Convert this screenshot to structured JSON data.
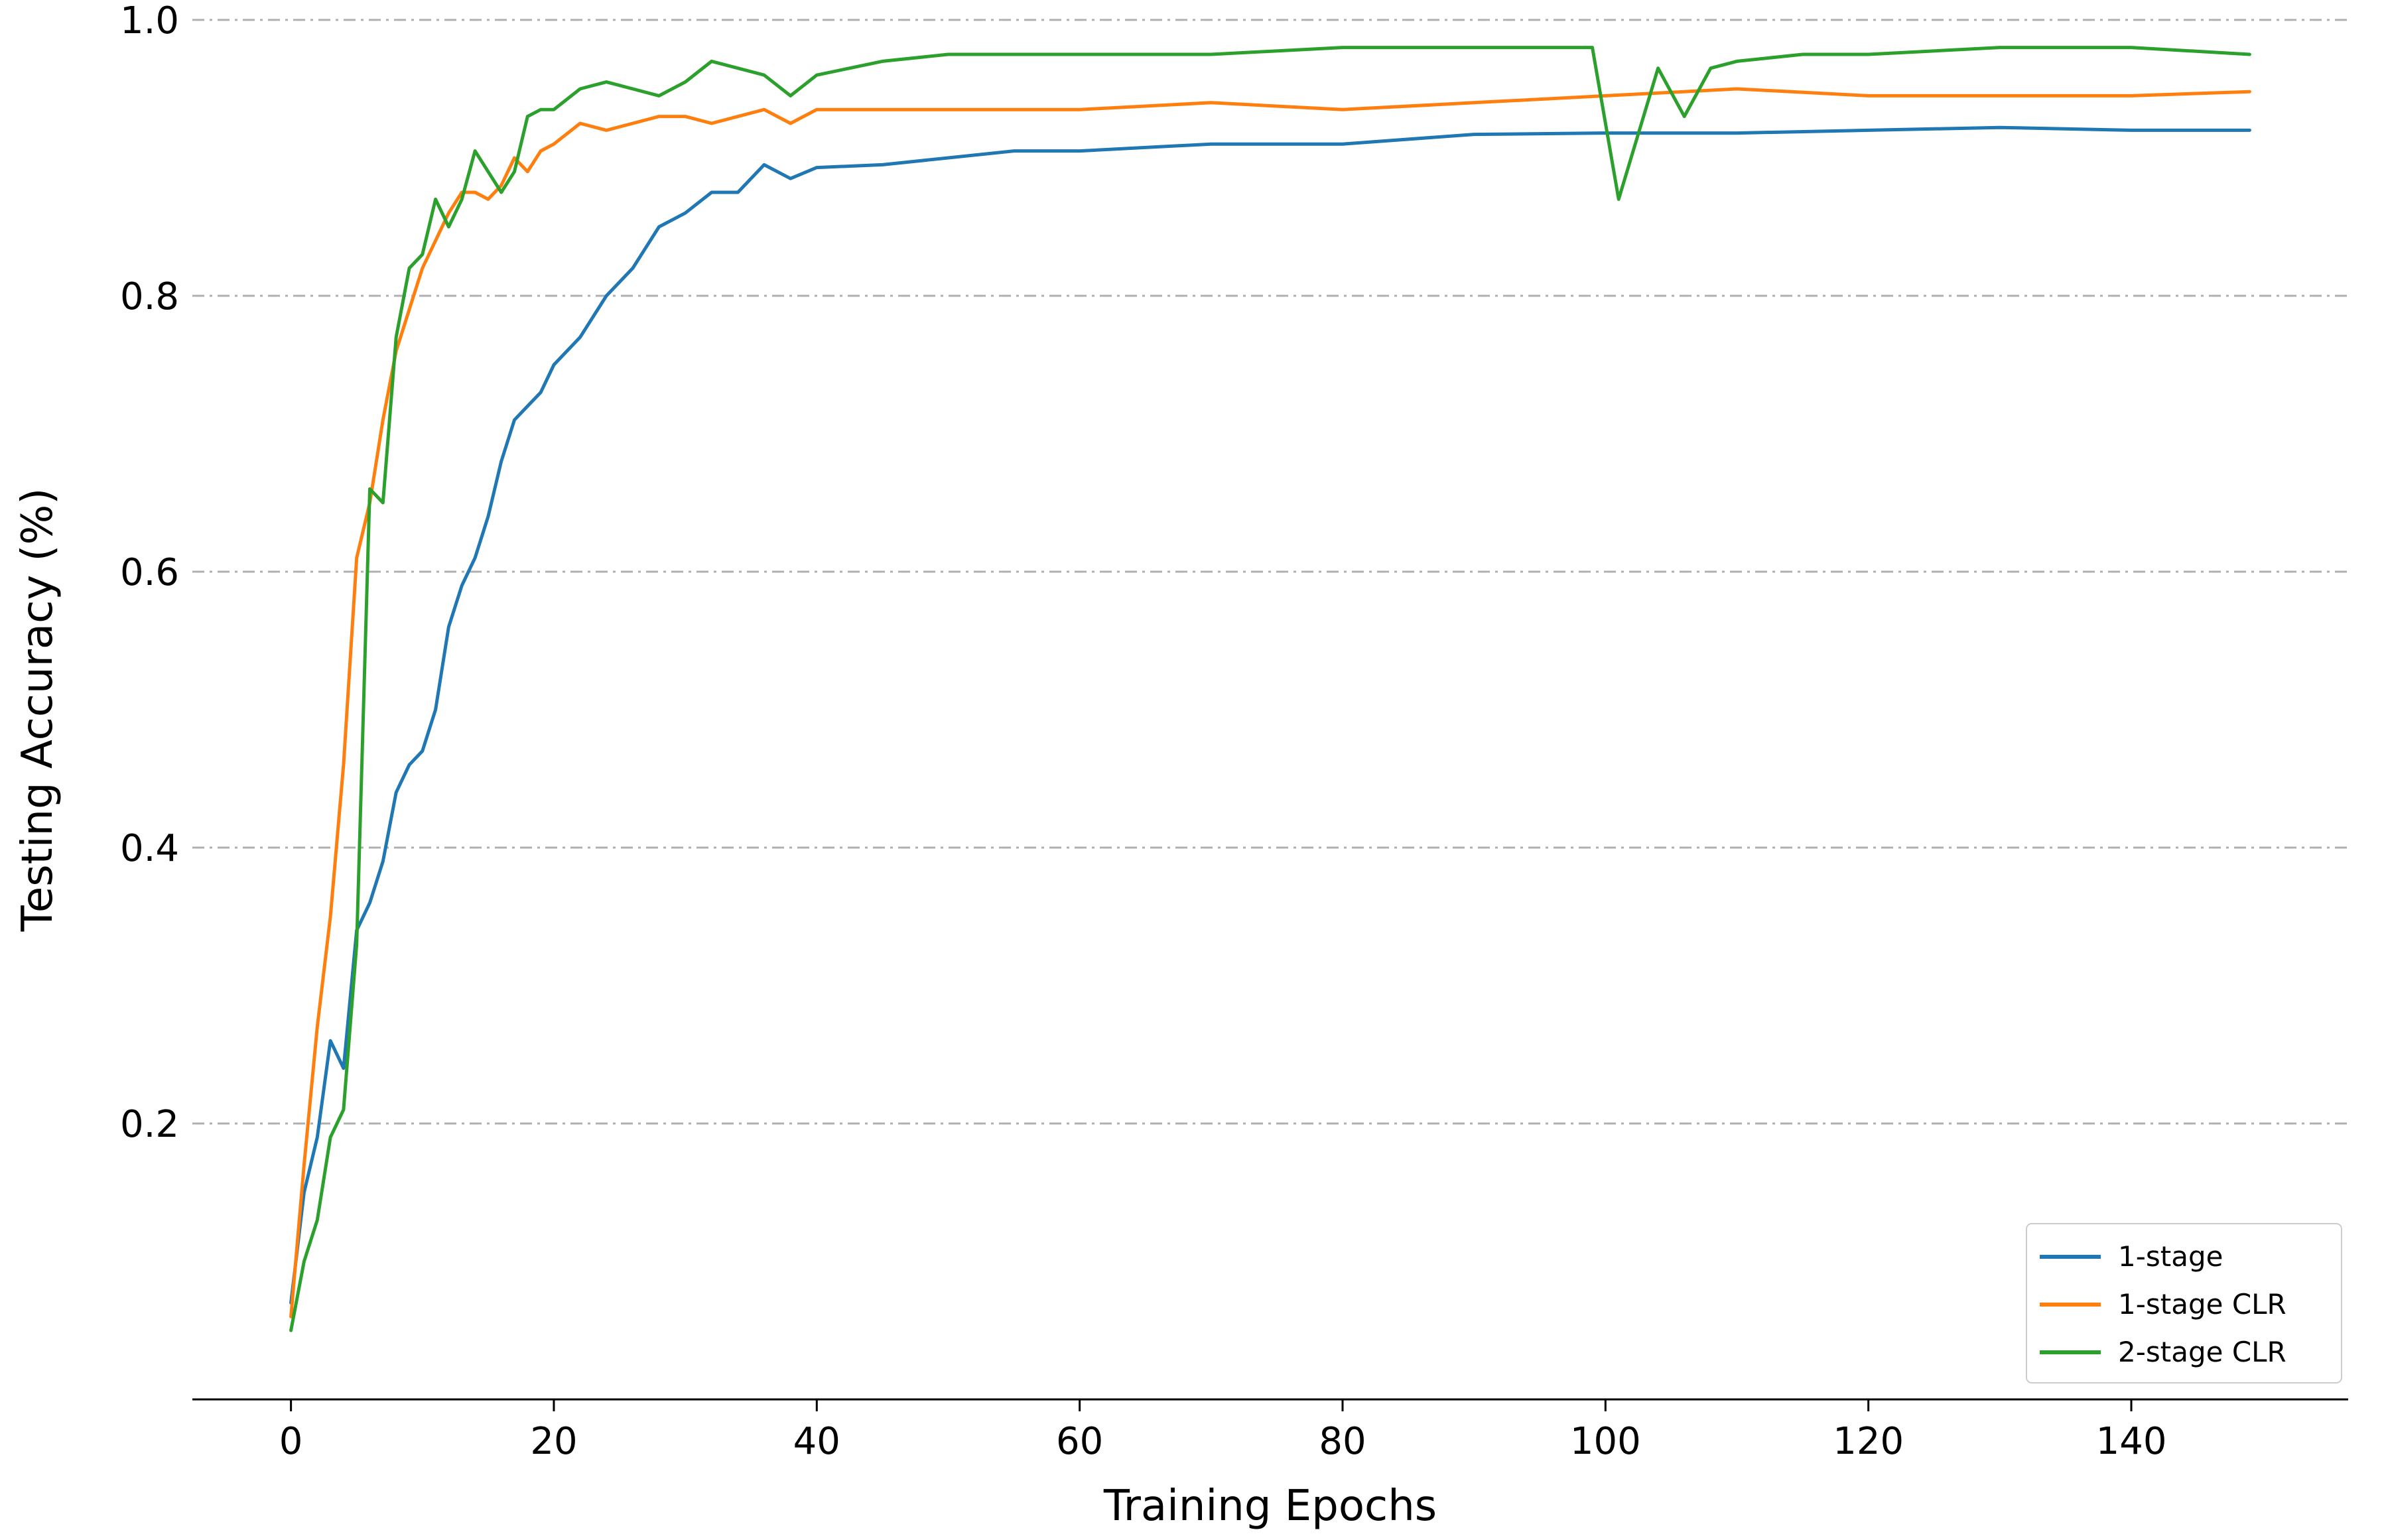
{
  "chart_data": {
    "type": "line",
    "title": "",
    "xlabel": "Training Epochs",
    "ylabel": "Testing Accuracy (%)",
    "xlim": [
      -7.5,
      156.5
    ],
    "ylim": [
      0.0,
      1.0
    ],
    "xticks": [
      0,
      20,
      40,
      60,
      80,
      100,
      120,
      140
    ],
    "yticks": [
      0.2,
      0.4,
      0.6,
      0.8,
      1.0
    ],
    "ytick_labels": [
      "0.2",
      "0.4",
      "0.6",
      "0.8",
      "1.0"
    ],
    "grid": "y dash-dot",
    "legend_position": "lower-right",
    "series": [
      {
        "name": "1-stage",
        "color": "#1f77b4",
        "x": [
          0,
          1,
          2,
          3,
          4,
          5,
          6,
          7,
          8,
          9,
          10,
          11,
          12,
          13,
          14,
          15,
          16,
          17,
          18,
          19,
          20,
          22,
          24,
          26,
          28,
          30,
          32,
          34,
          36,
          38,
          40,
          45,
          50,
          55,
          60,
          70,
          80,
          90,
          100,
          110,
          120,
          130,
          140,
          149
        ],
        "y": [
          0.07,
          0.15,
          0.19,
          0.26,
          0.24,
          0.34,
          0.36,
          0.39,
          0.44,
          0.46,
          0.47,
          0.5,
          0.56,
          0.59,
          0.61,
          0.64,
          0.68,
          0.71,
          0.72,
          0.73,
          0.75,
          0.77,
          0.8,
          0.82,
          0.85,
          0.86,
          0.875,
          0.875,
          0.895,
          0.885,
          0.893,
          0.895,
          0.9,
          0.905,
          0.905,
          0.91,
          0.91,
          0.917,
          0.918,
          0.918,
          0.92,
          0.922,
          0.92,
          0.92
        ]
      },
      {
        "name": "1-stage CLR",
        "color": "#ff7f0e",
        "x": [
          0,
          1,
          2,
          3,
          4,
          5,
          6,
          7,
          8,
          9,
          10,
          11,
          12,
          13,
          14,
          15,
          16,
          17,
          18,
          19,
          20,
          22,
          24,
          26,
          28,
          30,
          32,
          34,
          36,
          38,
          40,
          45,
          50,
          55,
          60,
          70,
          80,
          90,
          100,
          110,
          120,
          130,
          140,
          149
        ],
        "y": [
          0.06,
          0.17,
          0.27,
          0.35,
          0.46,
          0.61,
          0.65,
          0.71,
          0.76,
          0.79,
          0.82,
          0.84,
          0.86,
          0.875,
          0.875,
          0.87,
          0.88,
          0.9,
          0.89,
          0.905,
          0.91,
          0.925,
          0.92,
          0.925,
          0.93,
          0.93,
          0.925,
          0.93,
          0.935,
          0.925,
          0.935,
          0.935,
          0.935,
          0.935,
          0.935,
          0.94,
          0.935,
          0.94,
          0.945,
          0.95,
          0.945,
          0.945,
          0.945,
          0.948
        ]
      },
      {
        "name": "2-stage CLR",
        "color": "#2ca02c",
        "x": [
          0,
          1,
          2,
          3,
          4,
          5,
          6,
          7,
          8,
          9,
          10,
          11,
          12,
          13,
          14,
          15,
          16,
          17,
          18,
          19,
          20,
          22,
          24,
          26,
          28,
          30,
          32,
          34,
          36,
          38,
          40,
          45,
          50,
          55,
          60,
          70,
          80,
          90,
          99,
          101,
          104,
          106,
          108,
          110,
          115,
          120,
          130,
          140,
          149
        ],
        "y": [
          0.05,
          0.1,
          0.13,
          0.19,
          0.21,
          0.33,
          0.66,
          0.65,
          0.77,
          0.82,
          0.83,
          0.87,
          0.85,
          0.87,
          0.905,
          0.89,
          0.875,
          0.89,
          0.93,
          0.935,
          0.935,
          0.95,
          0.955,
          0.95,
          0.945,
          0.955,
          0.97,
          0.965,
          0.96,
          0.945,
          0.96,
          0.97,
          0.975,
          0.975,
          0.975,
          0.975,
          0.98,
          0.98,
          0.98,
          0.87,
          0.965,
          0.93,
          0.965,
          0.97,
          0.975,
          0.975,
          0.98,
          0.98,
          0.975
        ]
      }
    ]
  }
}
